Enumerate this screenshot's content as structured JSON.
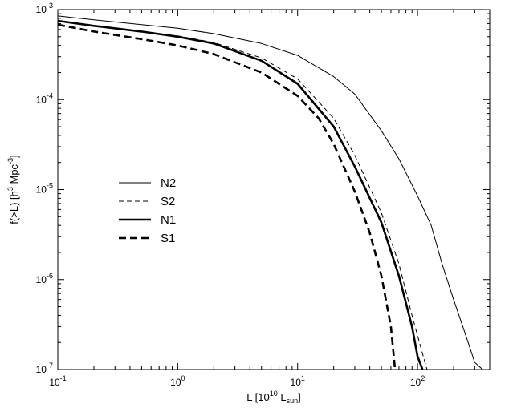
{
  "chart_data": {
    "type": "line",
    "xscale": "log",
    "yscale": "log",
    "xlim": [
      0.1,
      400
    ],
    "ylim": [
      1e-07,
      0.001
    ],
    "grid": false,
    "legend_position": "left",
    "xlabel": {
      "main": "L [10",
      "sup": "10",
      "mid": " L",
      "sub": "sun",
      "end": "]"
    },
    "ylabel": {
      "main": "f(>L) [h",
      "sup": "3",
      "mid": " Mpc",
      "sup2": "-3",
      "end": "]"
    },
    "xticks": [
      {
        "value": 0.1,
        "base": "10",
        "exp": "-1"
      },
      {
        "value": 1,
        "base": "10",
        "exp": "0"
      },
      {
        "value": 10,
        "base": "10",
        "exp": "1"
      },
      {
        "value": 100,
        "base": "10",
        "exp": "2"
      }
    ],
    "yticks": [
      {
        "value": 1e-07,
        "base": "10",
        "exp": "-7"
      },
      {
        "value": 1e-06,
        "base": "10",
        "exp": "-6"
      },
      {
        "value": 1e-05,
        "base": "10",
        "exp": "-5"
      },
      {
        "value": 0.0001,
        "base": "10",
        "exp": "-4"
      },
      {
        "value": 0.001,
        "base": "10",
        "exp": "-3"
      }
    ],
    "series": [
      {
        "name": "N2",
        "style": "thin-solid",
        "color": "#000000",
        "x": [
          0.1,
          0.2,
          0.5,
          1,
          2,
          5,
          10,
          20,
          30,
          50,
          70,
          100,
          130,
          160,
          200,
          250,
          300,
          350
        ],
        "y": [
          0.00085,
          0.00077,
          0.00068,
          0.00062,
          0.00054,
          0.00042,
          0.00031,
          0.00018,
          0.000115,
          4.5e-05,
          2.2e-05,
          8.5e-06,
          4e-06,
          1.5e-06,
          6e-07,
          2.5e-07,
          1.2e-07,
          1e-07
        ]
      },
      {
        "name": "S2",
        "style": "thin-dashed",
        "color": "#000000",
        "x": [
          0.1,
          0.2,
          0.5,
          1,
          2,
          5,
          10,
          20,
          30,
          50,
          70,
          90,
          110,
          120
        ],
        "y": [
          0.00075,
          0.00066,
          0.00057,
          0.00051,
          0.00043,
          0.00029,
          0.00017,
          6.2e-05,
          2.4e-05,
          5.5e-06,
          1.5e-06,
          4e-07,
          1.5e-07,
          1e-07
        ]
      },
      {
        "name": "N1",
        "style": "thick-solid",
        "color": "#000000",
        "x": [
          0.1,
          0.2,
          0.5,
          1,
          2,
          5,
          10,
          20,
          30,
          50,
          70,
          90,
          100,
          110
        ],
        "y": [
          0.00075,
          0.00066,
          0.00057,
          0.0005,
          0.00042,
          0.00027,
          0.00015,
          5e-05,
          1.8e-05,
          4.3e-06,
          1.1e-06,
          3e-07,
          1.4e-07,
          1e-07
        ]
      },
      {
        "name": "S1",
        "style": "thick-dashed",
        "color": "#000000",
        "x": [
          0.1,
          0.2,
          0.5,
          1,
          2,
          5,
          10,
          15,
          20,
          30,
          40,
          50,
          60,
          65
        ],
        "y": [
          0.00068,
          0.00057,
          0.00047,
          0.0004,
          0.00032,
          0.0002,
          0.00011,
          6.2e-05,
          3.2e-05,
          9.5e-06,
          3.3e-06,
          1.1e-06,
          3e-07,
          1e-07
        ]
      }
    ]
  }
}
